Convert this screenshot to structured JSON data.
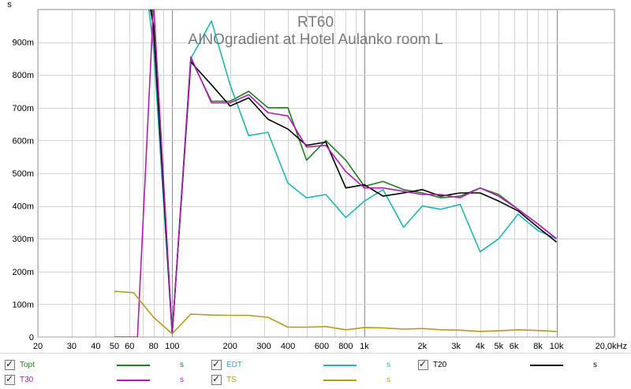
{
  "chart_data": {
    "type": "line",
    "title": "RT60",
    "subtitle": "AINOgradient at Hotel Aulanko room L",
    "y_unit_label": "s",
    "x_scale": "log",
    "xlim": [
      20,
      20000
    ],
    "ylim": [
      0,
      1.0
    ],
    "x_tick_labels": [
      {
        "v": 20,
        "t": "20"
      },
      {
        "v": 30,
        "t": "30"
      },
      {
        "v": 40,
        "t": "40"
      },
      {
        "v": 50,
        "t": "50"
      },
      {
        "v": 60,
        "t": "60"
      },
      {
        "v": 80,
        "t": "80"
      },
      {
        "v": 100,
        "t": "100"
      },
      {
        "v": 200,
        "t": "200"
      },
      {
        "v": 300,
        "t": "300"
      },
      {
        "v": 400,
        "t": "400"
      },
      {
        "v": 600,
        "t": "600"
      },
      {
        "v": 800,
        "t": "800"
      },
      {
        "v": 1000,
        "t": "1k"
      },
      {
        "v": 2000,
        "t": "2k"
      },
      {
        "v": 3000,
        "t": "3k"
      },
      {
        "v": 4000,
        "t": "4k"
      },
      {
        "v": 5000,
        "t": "5k"
      },
      {
        "v": 6000,
        "t": "6k"
      },
      {
        "v": 8000,
        "t": "8k"
      },
      {
        "v": 10000,
        "t": "10k"
      },
      {
        "v": 20000,
        "t": "20,0kHz"
      }
    ],
    "y_tick_labels": [
      {
        "v": 0,
        "t": "0"
      },
      {
        "v": 0.1,
        "t": "100m"
      },
      {
        "v": 0.2,
        "t": "200m"
      },
      {
        "v": 0.3,
        "t": "300m"
      },
      {
        "v": 0.4,
        "t": "400m"
      },
      {
        "v": 0.5,
        "t": "500m"
      },
      {
        "v": 0.6,
        "t": "600m"
      },
      {
        "v": 0.7,
        "t": "700m"
      },
      {
        "v": 0.8,
        "t": "800m"
      },
      {
        "v": 0.9,
        "t": "900m"
      }
    ],
    "series": [
      {
        "name": "Topt",
        "color": "#1f7f1f",
        "points": [
          [
            78,
            1.02
          ],
          [
            100,
            0.01
          ],
          [
            125,
            0.85
          ],
          [
            160,
            0.72
          ],
          [
            200,
            0.72
          ],
          [
            250,
            0.75
          ],
          [
            315,
            0.7
          ],
          [
            400,
            0.7
          ],
          [
            500,
            0.54
          ],
          [
            630,
            0.6
          ],
          [
            800,
            0.54
          ],
          [
            1000,
            0.46
          ],
          [
            1250,
            0.475
          ],
          [
            1600,
            0.45
          ],
          [
            2000,
            0.44
          ],
          [
            2500,
            0.425
          ],
          [
            3150,
            0.43
          ],
          [
            4000,
            0.455
          ],
          [
            5000,
            0.435
          ],
          [
            6300,
            0.39
          ],
          [
            8000,
            0.345
          ],
          [
            10000,
            0.3
          ]
        ]
      },
      {
        "name": "EDT",
        "color": "#1fb5b5",
        "points": [
          [
            75,
            1.02
          ],
          [
            80,
            0.88
          ],
          [
            100,
            0.01
          ],
          [
            125,
            0.85
          ],
          [
            160,
            0.965
          ],
          [
            200,
            0.77
          ],
          [
            250,
            0.615
          ],
          [
            315,
            0.625
          ],
          [
            400,
            0.47
          ],
          [
            500,
            0.425
          ],
          [
            630,
            0.435
          ],
          [
            800,
            0.365
          ],
          [
            1000,
            0.415
          ],
          [
            1250,
            0.45
          ],
          [
            1600,
            0.335
          ],
          [
            2000,
            0.4
          ],
          [
            2500,
            0.39
          ],
          [
            3150,
            0.405
          ],
          [
            4000,
            0.26
          ],
          [
            5000,
            0.3
          ],
          [
            6300,
            0.375
          ],
          [
            8000,
            0.325
          ],
          [
            10000,
            0.3
          ]
        ]
      },
      {
        "name": "T20",
        "color": "#000000",
        "points": [
          [
            76,
            1.02
          ],
          [
            80,
            0.95
          ],
          [
            100,
            0.01
          ],
          [
            125,
            0.84
          ],
          [
            160,
            0.77
          ],
          [
            200,
            0.705
          ],
          [
            250,
            0.73
          ],
          [
            315,
            0.665
          ],
          [
            400,
            0.635
          ],
          [
            500,
            0.585
          ],
          [
            630,
            0.595
          ],
          [
            800,
            0.455
          ],
          [
            1000,
            0.465
          ],
          [
            1250,
            0.43
          ],
          [
            1600,
            0.44
          ],
          [
            2000,
            0.45
          ],
          [
            2500,
            0.43
          ],
          [
            3150,
            0.44
          ],
          [
            4000,
            0.44
          ],
          [
            5000,
            0.415
          ],
          [
            6300,
            0.385
          ],
          [
            8000,
            0.335
          ],
          [
            10000,
            0.29
          ]
        ]
      },
      {
        "name": "T30",
        "color": "#b01cb5",
        "points": [
          [
            50,
            0.0
          ],
          [
            66,
            0.0
          ],
          [
            80,
            1.02
          ],
          [
            100,
            0.01
          ],
          [
            125,
            0.855
          ],
          [
            160,
            0.715
          ],
          [
            200,
            0.715
          ],
          [
            250,
            0.74
          ],
          [
            315,
            0.685
          ],
          [
            400,
            0.675
          ],
          [
            500,
            0.58
          ],
          [
            630,
            0.585
          ],
          [
            800,
            0.505
          ],
          [
            1000,
            0.455
          ],
          [
            1250,
            0.455
          ],
          [
            1600,
            0.445
          ],
          [
            2000,
            0.435
          ],
          [
            2500,
            0.435
          ],
          [
            3150,
            0.425
          ],
          [
            4000,
            0.455
          ],
          [
            5000,
            0.43
          ],
          [
            6300,
            0.39
          ],
          [
            8000,
            0.345
          ],
          [
            10000,
            0.3
          ]
        ]
      },
      {
        "name": "TS",
        "color": "#b89a1f",
        "points": [
          [
            50,
            0.14
          ],
          [
            63,
            0.135
          ],
          [
            80,
            0.06
          ],
          [
            100,
            0.01
          ],
          [
            125,
            0.07
          ],
          [
            160,
            0.067
          ],
          [
            200,
            0.066
          ],
          [
            250,
            0.066
          ],
          [
            315,
            0.06
          ],
          [
            400,
            0.03
          ],
          [
            500,
            0.03
          ],
          [
            630,
            0.032
          ],
          [
            800,
            0.022
          ],
          [
            1000,
            0.029
          ],
          [
            1250,
            0.028
          ],
          [
            1600,
            0.024
          ],
          [
            2000,
            0.026
          ],
          [
            2500,
            0.022
          ],
          [
            3150,
            0.021
          ],
          [
            4000,
            0.017
          ],
          [
            5000,
            0.019
          ],
          [
            6300,
            0.022
          ],
          [
            8000,
            0.02
          ],
          [
            10000,
            0.017
          ]
        ]
      }
    ]
  },
  "legend": {
    "items": [
      {
        "label": "Topt",
        "unit": "s",
        "color": "#1f7f1f"
      },
      {
        "label": "EDT",
        "unit": "s",
        "color": "#1fb5b5"
      },
      {
        "label": "T20",
        "unit": "s",
        "color": "#000000"
      },
      {
        "label": "T30",
        "unit": "s",
        "color": "#b01cb5"
      },
      {
        "label": "TS",
        "unit": "s",
        "color": "#b89a1f"
      }
    ]
  }
}
